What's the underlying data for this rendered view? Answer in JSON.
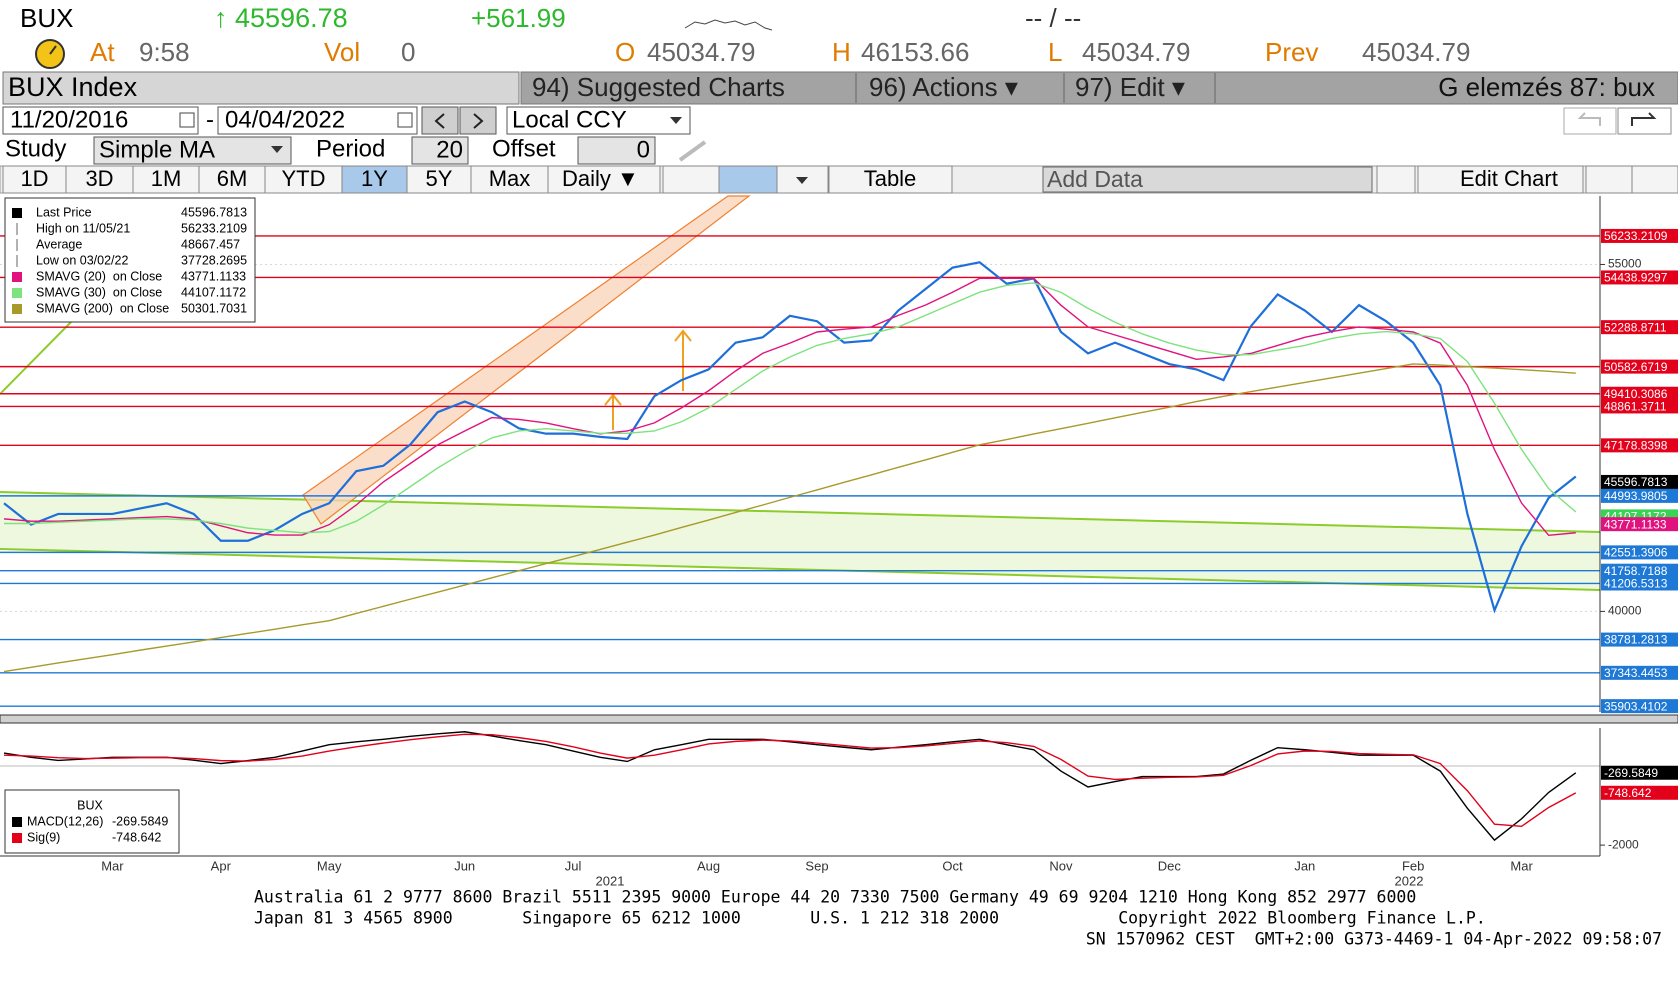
{
  "header": {
    "ticker": "BUX",
    "last": "↑ 45596.78",
    "change": "+561.99",
    "bid_ask": "-- / --",
    "time_label": "At",
    "time": "9:58",
    "volume_label": "Vol",
    "volume": "0",
    "quote": [
      {
        "label": "O",
        "value": "45034.79"
      },
      {
        "label": "H",
        "value": "46153.66"
      },
      {
        "label": "L",
        "value": "45034.79"
      },
      {
        "label": "Prev",
        "value": "45034.79"
      }
    ]
  },
  "toolbar": {
    "security": "BUX Index",
    "menus": [
      "94) Suggested Charts",
      "96) Actions ▾",
      "97) Edit ▾"
    ],
    "page": "G elemzés 87: bux",
    "start_date": "11/20/2016",
    "date_sep": "-",
    "end_date": "04/04/2022",
    "currency": "Local CCY",
    "study_label": "Study",
    "study": "Simple MA",
    "period_label": "Period",
    "period": "20",
    "offset_label": "Offset",
    "offset": "0",
    "ranges": [
      "1D",
      "3D",
      "1M",
      "6M",
      "YTD",
      "1Y",
      "5Y",
      "Max"
    ],
    "frequency": "Daily ▼",
    "table": "Table",
    "add_data": "Add Data",
    "edit_chart": "Edit Chart"
  },
  "chart_data": {
    "type": "line",
    "categories": [
      null,
      null,
      null,
      null,
      "Mar",
      null,
      null,
      null,
      "Apr",
      null,
      null,
      null,
      "May",
      null,
      null,
      null,
      null,
      "Jun",
      null,
      null,
      null,
      "Jul",
      null,
      null,
      null,
      null,
      "Aug",
      null,
      null,
      null,
      "Sep",
      null,
      null,
      null,
      null,
      "Oct",
      null,
      null,
      null,
      "Nov",
      null,
      null,
      null,
      "Dec",
      null,
      null,
      null,
      null,
      "Jan",
      null,
      null,
      null,
      "Feb",
      null,
      null,
      null,
      "Mar",
      null,
      null
    ],
    "year_labels": [
      "2021",
      "2022"
    ],
    "ylim": [
      35650,
      57960
    ],
    "yticks": [
      40000,
      55000
    ],
    "series": [
      {
        "name": "Last Price",
        "color": "#1e6fd9",
        "legend_value": 45596.7813,
        "values": [
          44676,
          43750,
          44213,
          44213,
          44213,
          44444,
          44676,
          44213,
          43055,
          43055,
          43519,
          44213,
          44676,
          46065,
          46296,
          47222,
          48611,
          49074,
          48611,
          47917,
          47685,
          47685,
          47546,
          47454,
          49306,
          50000,
          50463,
          51620,
          51852,
          52778,
          52546,
          51620,
          51713,
          53009,
          53935,
          54861,
          55093,
          54167,
          54398,
          52083,
          51157,
          51620,
          51157,
          50694,
          50463,
          50000,
          52315,
          53704,
          53009,
          52083,
          53241,
          52546,
          51620,
          49769,
          44213,
          40046,
          42824,
          44907,
          45833
        ]
      },
      {
        "name": "SMAVG (20)  on Close",
        "color": "#e0137e",
        "legend_value": 43771.1133,
        "values": [
          44000,
          43900,
          43900,
          43950,
          44000,
          44050,
          44100,
          44000,
          43700,
          43400,
          43300,
          43300,
          43750,
          44600,
          45600,
          46400,
          47200,
          47800,
          48380,
          48300,
          48150,
          47900,
          47680,
          47800,
          48150,
          48800,
          49540,
          50400,
          51160,
          51600,
          52080,
          52200,
          52300,
          52800,
          53240,
          53800,
          54400,
          54400,
          54400,
          53240,
          52300,
          51950,
          51600,
          51250,
          50900,
          51000,
          51150,
          51500,
          51850,
          52100,
          52300,
          52200,
          52080,
          51600,
          49770,
          46990,
          44680,
          43290,
          43400
        ]
      },
      {
        "name": "SMAVG (30)  on Close",
        "color": "#7ee27e",
        "legend_value": 44107.1172,
        "values": [
          43800,
          43800,
          43850,
          43900,
          43950,
          44000,
          44000,
          43950,
          43800,
          43600,
          43500,
          43400,
          43450,
          43900,
          44600,
          45400,
          46200,
          46900,
          47500,
          47800,
          47900,
          47800,
          47700,
          47700,
          47800,
          48200,
          48800,
          49600,
          50400,
          51000,
          51500,
          51800,
          52000,
          52300,
          52800,
          53300,
          53800,
          54100,
          54200,
          53800,
          53100,
          52500,
          52000,
          51600,
          51300,
          51100,
          51100,
          51300,
          51500,
          51800,
          52000,
          52100,
          52000,
          51800,
          50800,
          49000,
          47000,
          45300,
          44300
        ]
      },
      {
        "name": "SMAVG (200)  on Close",
        "color": "#a89a2a",
        "legend_value": 50301.7031,
        "values": [
          37400,
          37580,
          37770,
          37950,
          38130,
          38320,
          38500,
          38680,
          38870,
          39050,
          39230,
          39420,
          39600,
          39910,
          40220,
          40530,
          40830,
          41140,
          41450,
          41760,
          42070,
          42370,
          42680,
          42990,
          43300,
          43630,
          43950,
          44280,
          44600,
          44930,
          45250,
          45580,
          45900,
          46230,
          46550,
          46880,
          47200,
          47430,
          47670,
          47900,
          48130,
          48370,
          48600,
          48830,
          49070,
          49300,
          49500,
          49700,
          49900,
          50100,
          50300,
          50500,
          50700,
          50650,
          50580,
          50520,
          50450,
          50380,
          50300
        ]
      }
    ],
    "stats": [
      {
        "label": "High on 11/05/21",
        "value": 56233.2109
      },
      {
        "label": "Average",
        "value": 48667.457
      },
      {
        "label": "Low on 03/02/22",
        "value": 37728.2695
      }
    ],
    "levels": [
      {
        "value": 56233.2109,
        "color": "#e3001b",
        "line": true
      },
      {
        "value": 54438.9297,
        "color": "#e3001b",
        "line": true
      },
      {
        "value": 52288.8711,
        "color": "#e3001b",
        "line": true
      },
      {
        "value": 50582.6719,
        "color": "#e3001b",
        "line": true
      },
      {
        "value": 49410.3086,
        "color": "#e3001b",
        "line": true
      },
      {
        "value": 48861.3711,
        "color": "#e3001b",
        "line": true
      },
      {
        "value": 47178.8398,
        "color": "#e3001b",
        "line": true
      },
      {
        "value": 45596.7813,
        "color": "#000000",
        "line": false
      },
      {
        "value": 44993.9805,
        "color": "#1e78d6",
        "line": true
      },
      {
        "value": 44107.1172,
        "color": "#39d353",
        "line": false
      },
      {
        "value": 43771.1133,
        "color": "#e0137e",
        "line": false
      },
      {
        "value": 42551.3906,
        "color": "#1e78d6",
        "line": true
      },
      {
        "value": 41758.7188,
        "color": "#1e78d6",
        "line": true
      },
      {
        "value": 41206.5313,
        "color": "#1e78d6",
        "line": true
      },
      {
        "value": 38781.2813,
        "color": "#1e78d6",
        "line": true
      },
      {
        "value": 37343.4453,
        "color": "#1e78d6",
        "line": true
      },
      {
        "value": 35903.4102,
        "color": "#1e78d6",
        "line": true
      }
    ],
    "macd": {
      "title": "BUX",
      "ylim": [
        -2260,
        800
      ],
      "yticks": [
        -2000
      ],
      "series": [
        {
          "name": "MACD(12,26)",
          "color": "#000000",
          "last": -269.5849,
          "values": [
            200,
            100,
            25,
            60,
            100,
            100,
            100,
            30,
            -50,
            20,
            100,
            250,
            400,
            470,
            530,
            600,
            660,
            710,
            610,
            500,
            400,
            250,
            100,
            0,
            280,
            400,
            530,
            530,
            530,
            470,
            400,
            340,
            280,
            340,
            400,
            470,
            530,
            400,
            280,
            -230,
            -610,
            -480,
            -360,
            -360,
            -360,
            -300,
            25,
            330,
            280,
            220,
            150,
            150,
            150,
            -230,
            -1120,
            -1880,
            -1370,
            -740,
            -270
          ]
        },
        {
          "name": "Sig(9)",
          "color": "#e3001b",
          "last": -748.642,
          "values": [
            150,
            130,
            90,
            70,
            80,
            90,
            95,
            70,
            20,
            10,
            50,
            130,
            250,
            350,
            440,
            520,
            590,
            650,
            640,
            570,
            480,
            350,
            200,
            80,
            150,
            280,
            420,
            480,
            510,
            490,
            440,
            380,
            320,
            330,
            370,
            430,
            490,
            450,
            360,
            50,
            -350,
            -430,
            -400,
            -380,
            -370,
            -330,
            -100,
            180,
            250,
            240,
            190,
            170,
            160,
            -50,
            -700,
            -1500,
            -1550,
            -1100,
            -750
          ]
        }
      ]
    }
  },
  "footer": [
    "Australia 61 2 9777 8600 Brazil 5511 2395 9000 Europe 44 20 7330 7500 Germany 49 69 9204 1210 Hong Kong 852 2977 6000",
    "Japan 81 3 4565 8900       Singapore 65 6212 1000       U.S. 1 212 318 2000            Copyright 2022 Bloomberg Finance L.P.",
    "SN 1570962 CEST  GMT+2:00 G373-4469-1 04-Apr-2022 09:58:07"
  ]
}
